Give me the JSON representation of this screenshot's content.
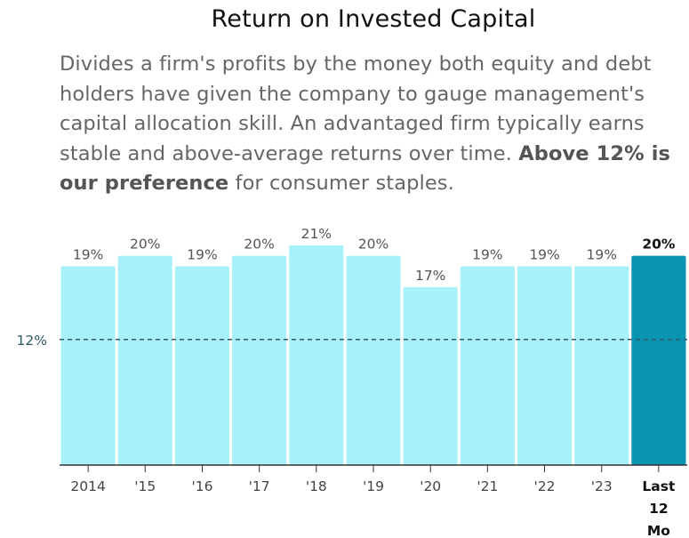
{
  "title": "Return on Invested Capital",
  "description": {
    "text": "Divides a firm's profits by the money both equity and debt holders have given the company to gauge management's capital allocation skill. An advantaged firm typically earns stable and above-average returns over time. ",
    "emphasis": "Above 12% is our preference",
    "tail": " for consumer staples."
  },
  "colors": {
    "bar": "#a8f1fb",
    "highlight_bar": "#0b93b4",
    "reference_line": "#2f5a66",
    "axis": "#333333"
  },
  "chart_data": {
    "type": "bar",
    "categories": [
      "2014",
      "'15",
      "'16",
      "'17",
      "'18",
      "'19",
      "'20",
      "'21",
      "'22",
      "'23",
      "Last 12 Mo"
    ],
    "category_lines": [
      [
        "2014"
      ],
      [
        "'15"
      ],
      [
        "'16"
      ],
      [
        "'17"
      ],
      [
        "'18"
      ],
      [
        "'19"
      ],
      [
        "'20"
      ],
      [
        "'21"
      ],
      [
        "'22"
      ],
      [
        "'23"
      ],
      [
        "Last",
        "12",
        "Mo"
      ]
    ],
    "values": [
      19,
      20,
      19,
      20,
      21,
      20,
      17,
      19,
      19,
      19,
      20
    ],
    "value_labels": [
      "19%",
      "20%",
      "19%",
      "20%",
      "21%",
      "20%",
      "17%",
      "19%",
      "19%",
      "19%",
      "20%"
    ],
    "highlight_index": 10,
    "reference_line": {
      "value": 12,
      "label": "12%",
      "style": "dashed"
    },
    "ylim": [
      0,
      21.5
    ],
    "grid": false,
    "legend": "none"
  }
}
